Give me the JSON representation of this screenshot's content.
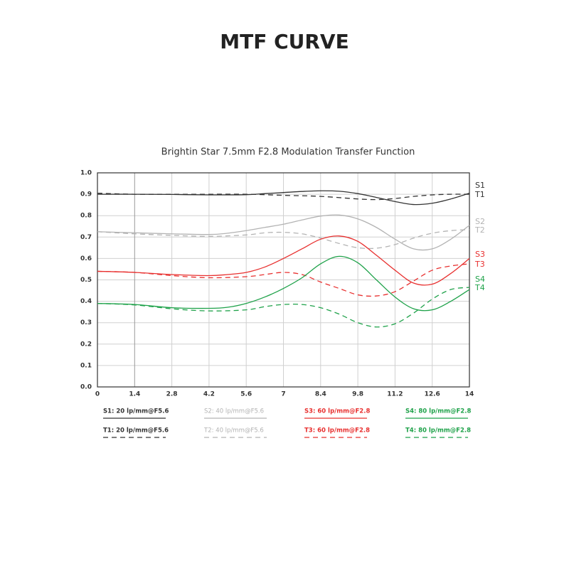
{
  "chart_data": {
    "type": "line",
    "title": "MTF CURVE",
    "subtitle": "Brightin Star 7.5mm F2.8 Modulation Transfer Function",
    "xlim": [
      0,
      14
    ],
    "ylim": [
      0,
      1
    ],
    "xticks": [
      0,
      1.4,
      2.8,
      4.2,
      5.6,
      7,
      8.4,
      9.8,
      11.2,
      12.6,
      14
    ],
    "yticks": [
      {
        "value": 0,
        "label": "0.0"
      },
      0.1,
      0.2,
      0.3,
      0.4,
      0.5,
      0.6,
      0.7,
      0.8,
      0.9,
      {
        "value": 1,
        "label": "1.0"
      }
    ],
    "grid": true,
    "series": [
      {
        "name": "S1: 20 lp/mm@F5.6",
        "short_name": "S1",
        "color": "#333333",
        "dashed": false,
        "x": [
          0,
          1.4,
          2.8,
          4.2,
          5.6,
          6.3,
          7,
          7.7,
          8.4,
          9.1,
          9.8,
          10.5,
          11.2,
          11.9,
          12.6,
          13.3,
          14
        ],
        "values": [
          0.9,
          0.9,
          0.899,
          0.897,
          0.898,
          0.903,
          0.908,
          0.913,
          0.916,
          0.914,
          0.903,
          0.885,
          0.866,
          0.852,
          0.858,
          0.878,
          0.905
        ]
      },
      {
        "name": "T1: 20 lp/mm@F5.6",
        "short_name": "T1",
        "color": "#333333",
        "dashed": true,
        "x": [
          0,
          1.4,
          2.8,
          4.2,
          5.6,
          7,
          8.4,
          9.8,
          10.5,
          11.2,
          11.9,
          12.6,
          13.3,
          14
        ],
        "values": [
          0.905,
          0.9,
          0.9,
          0.9,
          0.9,
          0.895,
          0.89,
          0.878,
          0.875,
          0.88,
          0.89,
          0.897,
          0.9,
          0.9
        ]
      },
      {
        "name": "S2: 40 lp/mm@F5.6",
        "short_name": "S2",
        "color": "#b3b3b3",
        "dashed": false,
        "x": [
          0,
          1.4,
          2.8,
          4.2,
          4.9,
          5.6,
          6.3,
          7,
          7.7,
          8.4,
          9.1,
          9.8,
          10.5,
          11.2,
          11.9,
          12.6,
          13.3,
          14
        ],
        "values": [
          0.725,
          0.72,
          0.715,
          0.712,
          0.718,
          0.73,
          0.745,
          0.76,
          0.78,
          0.798,
          0.803,
          0.785,
          0.745,
          0.69,
          0.645,
          0.645,
          0.69,
          0.755
        ]
      },
      {
        "name": "T2: 40 lp/mm@F5.6",
        "short_name": "T2",
        "color": "#b3b3b3",
        "dashed": true,
        "x": [
          0,
          1.4,
          2.8,
          4.2,
          5.6,
          6.3,
          7,
          7.7,
          8.4,
          9.1,
          9.8,
          10.5,
          11.2,
          11.9,
          12.6,
          13.3,
          14
        ],
        "values": [
          0.725,
          0.715,
          0.708,
          0.703,
          0.71,
          0.72,
          0.722,
          0.715,
          0.695,
          0.67,
          0.65,
          0.648,
          0.665,
          0.695,
          0.718,
          0.73,
          0.735
        ]
      },
      {
        "name": "S3: 60 lp/mm@F2.8",
        "short_name": "S3",
        "color": "#e8302f",
        "dashed": false,
        "x": [
          0,
          1.4,
          2.8,
          4.2,
          4.9,
          5.6,
          6.3,
          7,
          7.7,
          8.4,
          9.1,
          9.8,
          10.5,
          11.2,
          11.9,
          12.6,
          13.3,
          14
        ],
        "values": [
          0.54,
          0.535,
          0.525,
          0.52,
          0.525,
          0.535,
          0.56,
          0.6,
          0.645,
          0.69,
          0.705,
          0.68,
          0.615,
          0.545,
          0.485,
          0.48,
          0.53,
          0.6
        ]
      },
      {
        "name": "T3: 60 lp/mm@F2.8",
        "short_name": "T3",
        "color": "#e8302f",
        "dashed": true,
        "x": [
          0,
          1.4,
          2.8,
          4.2,
          5.6,
          6.3,
          7,
          7.7,
          8.4,
          9.1,
          9.8,
          10.5,
          11.2,
          11.9,
          12.6,
          13.3,
          14
        ],
        "values": [
          0.54,
          0.535,
          0.52,
          0.51,
          0.515,
          0.525,
          0.535,
          0.525,
          0.49,
          0.46,
          0.43,
          0.425,
          0.445,
          0.495,
          0.545,
          0.565,
          0.575
        ]
      },
      {
        "name": "S4: 80 lp/mm@F2.8",
        "short_name": "S4",
        "color": "#1fa24a",
        "dashed": false,
        "x": [
          0,
          1.4,
          2.8,
          4.2,
          4.9,
          5.6,
          6.3,
          7,
          7.7,
          8.4,
          9.1,
          9.8,
          10.5,
          11.2,
          11.9,
          12.6,
          13.3,
          14
        ],
        "values": [
          0.39,
          0.385,
          0.37,
          0.367,
          0.372,
          0.39,
          0.42,
          0.46,
          0.51,
          0.575,
          0.61,
          0.58,
          0.5,
          0.42,
          0.365,
          0.36,
          0.4,
          0.455
        ]
      },
      {
        "name": "T4: 80 lp/mm@F2.8",
        "short_name": "T4",
        "color": "#1fa24a",
        "dashed": true,
        "x": [
          0,
          1.4,
          2.8,
          4.2,
          5.6,
          6.3,
          7,
          7.7,
          8.4,
          9.1,
          9.8,
          10.5,
          11.2,
          11.9,
          12.6,
          13.3,
          14
        ],
        "values": [
          0.39,
          0.383,
          0.365,
          0.355,
          0.36,
          0.375,
          0.385,
          0.385,
          0.37,
          0.34,
          0.3,
          0.28,
          0.295,
          0.345,
          0.41,
          0.455,
          0.465
        ]
      }
    ]
  }
}
